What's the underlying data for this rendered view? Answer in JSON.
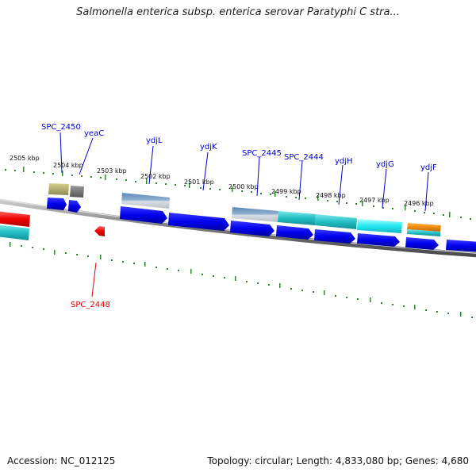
{
  "title": "Salmonella enterica subsp. enterica serovar Paratyphi C stra...",
  "footer": {
    "accession": "Accession: NC_012125",
    "summary": "Topology: circular; Length: 4,833,080 bp; Genes: 4,680"
  },
  "colors": {
    "label_blue": "#0000cc",
    "label_red": "#dd0000",
    "tick_green": "#2a8a2a",
    "backbone": "#888888"
  },
  "scale_labels": [
    "2505 kbp",
    "2504 kbp",
    "2503 kbp",
    "2502 kbp",
    "2501 kbp",
    "2500 kbp",
    "2499 kbp",
    "2498 kbp",
    "2497 kbp",
    "2496 kbp"
  ],
  "gene_labels": [
    {
      "text": "SPC_2450",
      "strand": "forward"
    },
    {
      "text": "yeaC",
      "strand": "forward"
    },
    {
      "text": "ydjL",
      "strand": "forward"
    },
    {
      "text": "ydjK",
      "strand": "forward"
    },
    {
      "text": "SPC_2445",
      "strand": "forward"
    },
    {
      "text": "SPC_2444",
      "strand": "forward"
    },
    {
      "text": "ydjH",
      "strand": "forward"
    },
    {
      "text": "ydjG",
      "strand": "forward"
    },
    {
      "text": "ydjF",
      "strand": "forward"
    },
    {
      "text": "SPC_2448",
      "strand": "reverse"
    }
  ]
}
